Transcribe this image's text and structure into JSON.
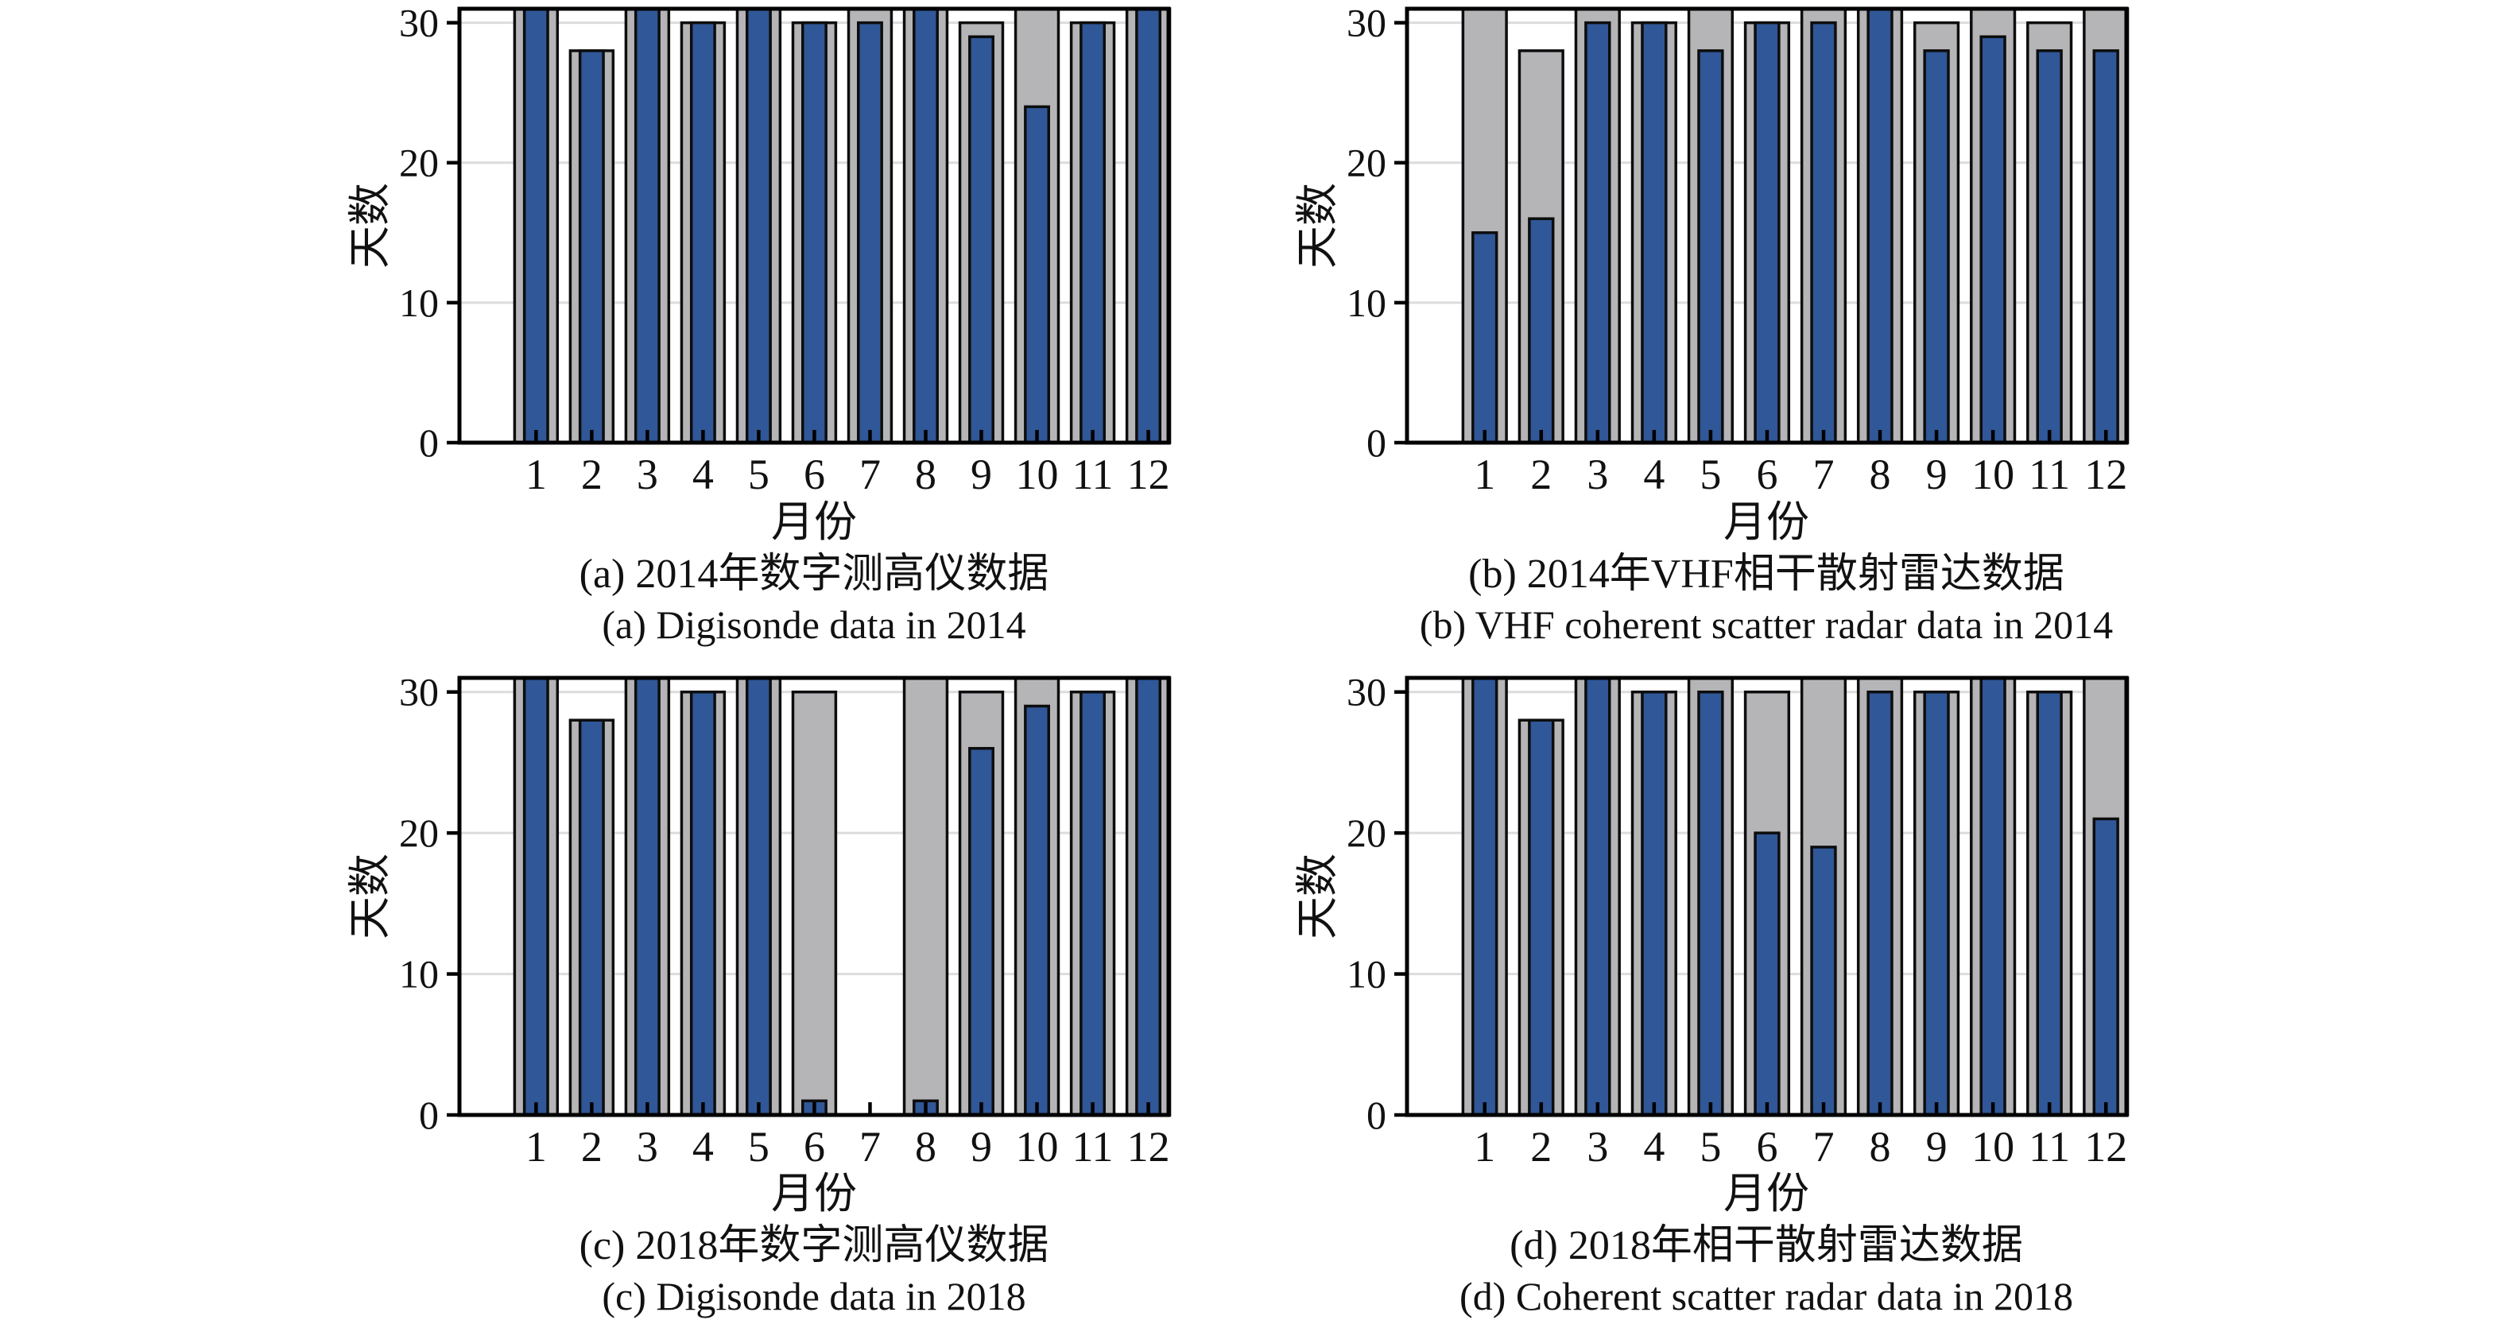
{
  "figure": {
    "background": "#ffffff",
    "ylabel": "天数",
    "xlabel": "月份",
    "ytick_labels": [
      "0",
      "10",
      "20",
      "30"
    ],
    "ytick_values": [
      0,
      10,
      20,
      30
    ],
    "gridline_values": [
      10,
      20,
      30
    ],
    "months": [
      "1",
      "2",
      "3",
      "4",
      "5",
      "6",
      "7",
      "8",
      "9",
      "10",
      "11",
      "12"
    ],
    "colors": {
      "bar_blue": "#305797",
      "bar_gray": "#B5B5B8",
      "gridline": "#DCDCDC",
      "outline": "#0D0D0D",
      "frame": "#000000"
    }
  },
  "chart_data": [
    {
      "id": "a",
      "type": "bar",
      "title_cn": "(a) 2014年数字测高仪数据",
      "title_en": "(a) Digisonde data in 2014",
      "xlabel": "月份",
      "ylabel": "天数",
      "categories": [
        "1",
        "2",
        "3",
        "4",
        "5",
        "6",
        "7",
        "8",
        "9",
        "10",
        "11",
        "12"
      ],
      "ylim": [
        0,
        31
      ],
      "grid": true,
      "legend": "none",
      "series": [
        {
          "name": "days_in_month_gray",
          "values": [
            31,
            28,
            31,
            30,
            31,
            30,
            31,
            31,
            30,
            31,
            30,
            31
          ]
        },
        {
          "name": "days_with_data_blue",
          "values": [
            31,
            28,
            31,
            30,
            31,
            30,
            30,
            31,
            29,
            24,
            30,
            31
          ]
        }
      ]
    },
    {
      "id": "b",
      "type": "bar",
      "title_cn": "(b) 2014年VHF相干散射雷达数据",
      "title_en": "(b) VHF coherent scatter radar data in 2014",
      "xlabel": "月份",
      "ylabel": "天数",
      "categories": [
        "1",
        "2",
        "3",
        "4",
        "5",
        "6",
        "7",
        "8",
        "9",
        "10",
        "11",
        "12"
      ],
      "ylim": [
        0,
        31
      ],
      "grid": true,
      "legend": "none",
      "series": [
        {
          "name": "days_in_month_gray",
          "values": [
            31,
            28,
            31,
            30,
            31,
            30,
            31,
            31,
            30,
            31,
            30,
            31
          ]
        },
        {
          "name": "days_with_data_blue",
          "values": [
            15,
            16,
            30,
            30,
            28,
            30,
            30,
            31,
            28,
            29,
            28,
            28
          ]
        }
      ]
    },
    {
      "id": "c",
      "type": "bar",
      "title_cn": "(c) 2018年数字测高仪数据",
      "title_en": "(c) Digisonde data in 2018",
      "xlabel": "月份",
      "ylabel": "天数",
      "categories": [
        "1",
        "2",
        "3",
        "4",
        "5",
        "6",
        "7",
        "8",
        "9",
        "10",
        "11",
        "12"
      ],
      "ylim": [
        0,
        31
      ],
      "grid": true,
      "legend": "none",
      "series": [
        {
          "name": "days_in_month_gray",
          "values": [
            31,
            28,
            31,
            30,
            31,
            30,
            0,
            31,
            30,
            31,
            30,
            31
          ]
        },
        {
          "name": "days_with_data_blue",
          "values": [
            31,
            28,
            31,
            30,
            31,
            1,
            0,
            1,
            26,
            29,
            30,
            31
          ]
        }
      ]
    },
    {
      "id": "d",
      "type": "bar",
      "title_cn": "(d) 2018年相干散射雷达数据",
      "title_en": "(d) Coherent scatter radar data in 2018",
      "xlabel": "月份",
      "ylabel": "天数",
      "categories": [
        "1",
        "2",
        "3",
        "4",
        "5",
        "6",
        "7",
        "8",
        "9",
        "10",
        "11",
        "12"
      ],
      "ylim": [
        0,
        31
      ],
      "grid": true,
      "legend": "none",
      "series": [
        {
          "name": "days_in_month_gray",
          "values": [
            31,
            28,
            31,
            30,
            31,
            30,
            31,
            31,
            30,
            31,
            30,
            31
          ]
        },
        {
          "name": "days_with_data_blue",
          "values": [
            31,
            28,
            31,
            30,
            30,
            20,
            19,
            30,
            30,
            31,
            30,
            21
          ]
        }
      ]
    }
  ]
}
